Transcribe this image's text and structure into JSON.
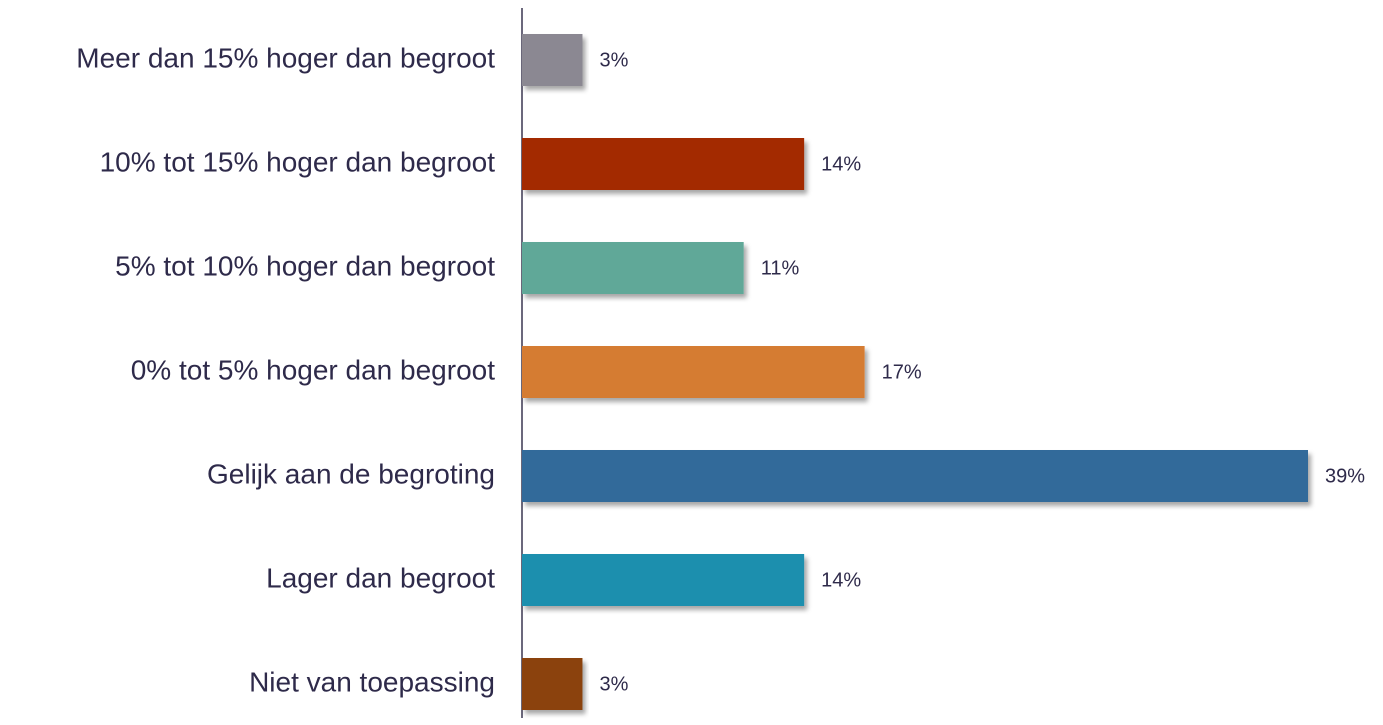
{
  "chart_data": {
    "type": "bar",
    "orientation": "horizontal",
    "categories": [
      "Meer dan 15% hoger dan begroot",
      "10% tot 15% hoger dan begroot",
      "5% tot 10% hoger dan begroot",
      "0% tot 5% hoger dan begroot",
      "Gelijk aan de begroting",
      "Lager dan begroot",
      "Niet van toepassing"
    ],
    "values": [
      3,
      14,
      11,
      17,
      39,
      14,
      3
    ],
    "value_labels": [
      "3%",
      "14%",
      "11%",
      "17%",
      "39%",
      "14%",
      "3%"
    ],
    "colors": [
      "#8b8892",
      "#a32900",
      "#60a898",
      "#d57b31",
      "#336a9a",
      "#1f8fae",
      "#8b4309"
    ]
  }
}
